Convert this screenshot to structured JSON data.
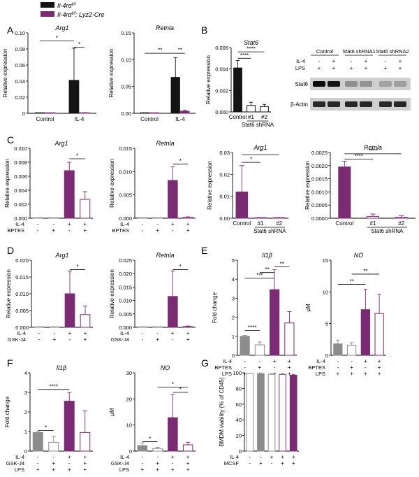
{
  "colors": {
    "black": "#141414",
    "purple": "#7b2a74",
    "gray": "#8c8c8c",
    "axis": "#000000"
  },
  "legend": [
    {
      "label": "Il-4rα",
      "sup": "f/f",
      "suffix": "",
      "style": "black"
    },
    {
      "label": "Il-4rα",
      "sup": "f/f",
      "suffix": "; Lyz2-Cre",
      "style": "purple"
    }
  ],
  "panel_letters": [
    "A",
    "B",
    "C",
    "D",
    "E",
    "F",
    "G"
  ],
  "blot": {
    "headers": [
      "Control",
      "Stat6 shRNA1",
      "Stat6 shRNA2"
    ],
    "rows": [
      {
        "label": "IL-4",
        "values": [
          "-",
          "+",
          "-",
          "+",
          "-",
          "+"
        ]
      },
      {
        "label": "LPS",
        "values": [
          "+",
          "+",
          "+",
          "+",
          "+",
          "+"
        ]
      }
    ],
    "bands": [
      {
        "label": "Stat6",
        "intensity": [
          1.0,
          0.95,
          0.3,
          0.28,
          0.2,
          0.22
        ]
      },
      {
        "label": "β-Actin",
        "intensity": [
          0.85,
          0.85,
          0.85,
          0.85,
          0.85,
          0.85
        ]
      }
    ]
  },
  "chart_data": [
    {
      "id": "A1",
      "type": "bar",
      "title": "Arg1",
      "ylabel": "Relative expression",
      "ylim": [
        0,
        0.1
      ],
      "yticks": [
        "0",
        "0.02",
        "0.04",
        "0.06",
        "0.08",
        "0.10"
      ],
      "values": [
        0.0,
        0.0,
        0.041,
        0.0005
      ],
      "errors": [
        0,
        0,
        0.04,
        0.0003
      ],
      "styles": [
        "black",
        "purple",
        "black",
        "purple"
      ],
      "xlabels": [
        "Control",
        "IL-4"
      ],
      "xlabel_mode": "groups",
      "brackets": [
        {
          "from": 0,
          "to": 2,
          "level": 0.09,
          "label": "*"
        },
        {
          "from": 2,
          "to": 3,
          "level": 0.082,
          "label": "*"
        }
      ]
    },
    {
      "id": "A2",
      "type": "bar",
      "title": "Retnla",
      "ylabel": "Relative expression",
      "ylim": [
        0,
        0.15
      ],
      "yticks": [
        "0.00",
        "0.05",
        "0.10",
        "0.15"
      ],
      "values": [
        0.0,
        0.0,
        0.067,
        0.004
      ],
      "errors": [
        0,
        0,
        0.037,
        0.002
      ],
      "styles": [
        "black",
        "purple",
        "black",
        "purple"
      ],
      "xlabels": [
        "Control",
        "IL-4"
      ],
      "xlabel_mode": "groups",
      "brackets": [
        {
          "from": 0,
          "to": 2,
          "level": 0.112,
          "label": "**"
        },
        {
          "from": 2,
          "to": 3,
          "level": 0.112,
          "label": "**"
        }
      ]
    },
    {
      "id": "B1",
      "type": "bar",
      "title": "Stat6",
      "ylabel": "Relative expression",
      "ylim": [
        0,
        0.006
      ],
      "yticks": [
        "0.000",
        "0.002",
        "0.004",
        "0.006"
      ],
      "values": [
        0.0041,
        0.0006,
        0.0005
      ],
      "errors": [
        0.0007,
        0.0003,
        0.0002
      ],
      "styles": [
        "black",
        "outline-black",
        "outline-black"
      ],
      "xlabels": [
        "Control",
        "#1",
        "#2"
      ],
      "xlabel_mode": "bars",
      "subgroup_label": "Stat6 shRNA",
      "subgroup_range": [
        1,
        2
      ],
      "brackets": [
        {
          "from": 0,
          "to": 1,
          "level": 0.005,
          "label": "****"
        },
        {
          "from": 0,
          "to": 2,
          "level": 0.0056,
          "label": "****"
        }
      ]
    },
    {
      "id": "C1",
      "type": "bar",
      "title": "Arg1",
      "ylabel": "Relative expression",
      "ylim": [
        0,
        0.01
      ],
      "yticks": [
        "0.000",
        "0.002",
        "0.004",
        "0.006",
        "0.008",
        "0.010"
      ],
      "values": [
        0.0,
        0.0,
        0.0068,
        0.0027
      ],
      "errors": [
        0,
        0,
        0.0012,
        0.0011
      ],
      "styles": [
        "gray",
        "outline-gray",
        "purple",
        "outline-purple"
      ],
      "factors": [
        {
          "label": "IL-4",
          "values": [
            "-",
            "-",
            "+",
            "+"
          ]
        },
        {
          "label": "BPTES",
          "values": [
            "-",
            "+",
            "-",
            "+"
          ]
        }
      ],
      "brackets": [
        {
          "from": 2,
          "to": 3,
          "level": 0.0085,
          "label": "*"
        }
      ]
    },
    {
      "id": "C2",
      "type": "bar",
      "title": "Retnla",
      "ylabel": "Relative expression",
      "ylim": [
        0,
        0.015
      ],
      "yticks": [
        "0.000",
        "0.005",
        "0.010",
        "0.015"
      ],
      "values": [
        0.0,
        0.0,
        0.0081,
        0.0002
      ],
      "errors": [
        0,
        0,
        0.0029,
        0.0001
      ],
      "styles": [
        "gray",
        "outline-gray",
        "purple",
        "outline-purple"
      ],
      "factors": [
        {
          "label": "IL-4",
          "values": [
            "-",
            "-",
            "+",
            "+"
          ]
        },
        {
          "label": "BPTES",
          "values": [
            "-",
            "+",
            "-",
            "+"
          ]
        }
      ],
      "brackets": [
        {
          "from": 2,
          "to": 3,
          "level": 0.0116,
          "label": "*"
        }
      ]
    },
    {
      "id": "C3",
      "type": "bar",
      "title": "Arg1",
      "ylabel": "Relative expression",
      "ylim": [
        0,
        0.03
      ],
      "yticks": [
        "0.00",
        "0.01",
        "0.02",
        "0.03"
      ],
      "values": [
        0.012,
        0.0002,
        0.0002
      ],
      "errors": [
        0.012,
        0.0001,
        0.0001
      ],
      "styles": [
        "purple",
        "outline-purple",
        "outline-purple"
      ],
      "xlabels": [
        "Control",
        "#1",
        "#2"
      ],
      "xlabel_mode": "bars",
      "subgroup_label": "Stat6 shRNA",
      "subgroup_range": [
        1,
        2
      ],
      "brackets": [
        {
          "from": 0,
          "to": 1,
          "level": 0.0255,
          "label": "*"
        },
        {
          "from": 0,
          "to": 2,
          "level": 0.029,
          "label": "*"
        }
      ]
    },
    {
      "id": "C4",
      "type": "bar",
      "title": "Retnla",
      "ylabel": "Relative expression",
      "ylim": [
        0,
        0.0025
      ],
      "yticks": [
        "0.0000",
        "0.0005",
        "0.0010",
        "0.0015",
        "0.0020",
        "0.0025"
      ],
      "values": [
        0.00195,
        7e-05,
        4e-05
      ],
      "errors": [
        0.00022,
        9e-05,
        6e-05
      ],
      "styles": [
        "purple",
        "outline-purple",
        "outline-purple"
      ],
      "xlabels": [
        "Control",
        "#1",
        "#2"
      ],
      "xlabel_mode": "bars",
      "subgroup_label": "Stat6 shRNA",
      "subgroup_range": [
        1,
        2
      ],
      "brackets": [
        {
          "from": 0,
          "to": 1,
          "level": 0.00225,
          "label": "****"
        },
        {
          "from": 0,
          "to": 2,
          "level": 0.00245,
          "label": "****"
        }
      ]
    },
    {
      "id": "D1",
      "type": "bar",
      "title": "Arg1",
      "ylabel": "Relative expression",
      "ylim": [
        0,
        0.02
      ],
      "yticks": [
        "0.000",
        "0.005",
        "0.010",
        "0.015",
        "0.020"
      ],
      "values": [
        0.0,
        0.0,
        0.01,
        0.0038
      ],
      "errors": [
        0,
        0,
        0.0068,
        0.0026
      ],
      "styles": [
        "gray",
        "outline-gray",
        "purple",
        "outline-purple"
      ],
      "factors": [
        {
          "label": "IL-4",
          "values": [
            "-",
            "-",
            "+",
            "+"
          ]
        },
        {
          "label": "GSK-J4",
          "values": [
            "-",
            "+",
            "-",
            "+"
          ]
        }
      ],
      "brackets": [
        {
          "from": 2,
          "to": 3,
          "level": 0.0172,
          "label": "*"
        }
      ]
    },
    {
      "id": "D2",
      "type": "bar",
      "title": "Retnla",
      "ylabel": "Relative expression",
      "ylim": [
        0,
        0.025
      ],
      "yticks": [
        "0.000",
        "0.005",
        "0.010",
        "0.015",
        "0.020",
        "0.025"
      ],
      "values": [
        0.0,
        0.0,
        0.0115,
        0.0003
      ],
      "errors": [
        0,
        0,
        0.0095,
        0.0002
      ],
      "styles": [
        "gray",
        "outline-gray",
        "purple",
        "outline-purple"
      ],
      "factors": [
        {
          "label": "IL-4",
          "values": [
            "-",
            "-",
            "+",
            "+"
          ]
        },
        {
          "label": "GSK-J4",
          "values": [
            "-",
            "+",
            "-",
            "+"
          ]
        }
      ],
      "brackets": [
        {
          "from": 2,
          "to": 3,
          "level": 0.0215,
          "label": "*"
        }
      ]
    },
    {
      "id": "E1",
      "type": "bar",
      "title": "Il1β",
      "ylabel": "Fold change",
      "ylim": [
        0,
        5
      ],
      "yticks": [
        "0",
        "1",
        "2",
        "3",
        "4",
        "5"
      ],
      "values": [
        1.0,
        0.55,
        3.45,
        1.7
      ],
      "errors": [
        0.05,
        0.15,
        1.05,
        0.6
      ],
      "styles": [
        "gray",
        "outline-gray",
        "purple",
        "outline-purple"
      ],
      "factors": [
        {
          "label": "IL-4",
          "values": [
            "-",
            "-",
            "+",
            "+"
          ]
        },
        {
          "label": "BPTES",
          "values": [
            "-",
            "+",
            "-",
            "+"
          ]
        },
        {
          "label": "LPS",
          "values": [
            "+",
            "+",
            "+",
            "+"
          ]
        }
      ],
      "brackets": [
        {
          "from": 0,
          "to": 1,
          "level": 1.3,
          "label": "****"
        },
        {
          "from": 0,
          "to": 2,
          "level": 4.05,
          "label": "***"
        },
        {
          "from": 1,
          "to": 2,
          "level": 4.35,
          "label": "**"
        },
        {
          "from": 2,
          "to": 3,
          "level": 4.65,
          "label": "**"
        }
      ]
    },
    {
      "id": "E2",
      "type": "bar",
      "title": "NO",
      "ylabel": "μM",
      "ylim": [
        0,
        15
      ],
      "yticks": [
        "0",
        "5",
        "10",
        "15"
      ],
      "values": [
        1.8,
        1.6,
        7.2,
        6.6
      ],
      "errors": [
        0.6,
        0.4,
        3.2,
        3.0
      ],
      "styles": [
        "gray",
        "outline-gray",
        "purple",
        "outline-purple"
      ],
      "factors": [
        {
          "label": "IL-4",
          "values": [
            "-",
            "-",
            "+",
            "+"
          ]
        },
        {
          "label": "BPTES",
          "values": [
            "-",
            "+",
            "-",
            "+"
          ]
        },
        {
          "label": "LPS",
          "values": [
            "+",
            "+",
            "+",
            "+"
          ]
        }
      ],
      "brackets": [
        {
          "from": 0,
          "to": 2,
          "level": 11.2,
          "label": "**"
        },
        {
          "from": 1,
          "to": 3,
          "level": 12.8,
          "label": "**"
        }
      ]
    },
    {
      "id": "F1",
      "type": "bar",
      "title": "Il1β",
      "ylabel": "Fold change",
      "ylim": [
        0,
        4
      ],
      "yticks": [
        "0",
        "1",
        "2",
        "3",
        "4"
      ],
      "values": [
        0.95,
        0.45,
        2.55,
        0.95
      ],
      "errors": [
        0.05,
        0.3,
        0.45,
        1.1
      ],
      "styles": [
        "gray",
        "outline-gray",
        "purple",
        "outline-purple"
      ],
      "factors": [
        {
          "label": "IL-4",
          "values": [
            "-",
            "-",
            "+",
            "+"
          ]
        },
        {
          "label": "GSK-J4",
          "values": [
            "-",
            "+",
            "-",
            "+"
          ]
        },
        {
          "label": "LPS",
          "values": [
            "+",
            "+",
            "+",
            "+"
          ]
        }
      ],
      "brackets": [
        {
          "from": 0,
          "to": 1,
          "level": 1.05,
          "label": "*"
        },
        {
          "from": 0,
          "to": 2,
          "level": 3.15,
          "label": "****"
        }
      ]
    },
    {
      "id": "F2",
      "type": "bar",
      "title": "NO",
      "ylabel": "μM",
      "ylim": [
        0,
        30
      ],
      "yticks": [
        "0",
        "10",
        "20",
        "30"
      ],
      "values": [
        2.1,
        1.0,
        12.8,
        2.4
      ],
      "errors": [
        1.1,
        0.5,
        8.8,
        1.0
      ],
      "styles": [
        "gray",
        "outline-gray",
        "purple",
        "outline-purple"
      ],
      "factors": [
        {
          "label": "IL-4",
          "values": [
            "-",
            "-",
            "+",
            "+"
          ]
        },
        {
          "label": "GSK-J4",
          "values": [
            "-",
            "+",
            "-",
            "+"
          ]
        },
        {
          "label": "LPS",
          "values": [
            "+",
            "+",
            "+",
            "+"
          ]
        }
      ],
      "brackets": [
        {
          "from": 0,
          "to": 1,
          "level": 3.6,
          "label": "*"
        },
        {
          "from": 1,
          "to": 3,
          "level": 24.5,
          "label": "*"
        },
        {
          "from": 2,
          "to": 3,
          "level": 22.5,
          "label": "*"
        }
      ]
    },
    {
      "id": "G1",
      "type": "bar",
      "title": "",
      "ylabel": "BMDM viability (% of CD45)",
      "ylim": [
        0,
        100
      ],
      "yticks": [
        "0",
        "20",
        "40",
        "60",
        "80",
        "100"
      ],
      "values": [
        99,
        99,
        98,
        98,
        97
      ],
      "errors": [
        0.3,
        0.3,
        0.8,
        0.8,
        1.0
      ],
      "styles": [
        "outline-gray",
        "gray",
        "outline-gray",
        "outline-purple",
        "purple"
      ],
      "factors": [
        {
          "label": "IL-4",
          "values": [
            "-",
            "-",
            "+",
            "+",
            "+"
          ]
        },
        {
          "label": "MCSF",
          "values": [
            "-",
            "+",
            "-",
            "+",
            "+"
          ]
        }
      ],
      "brackets": []
    }
  ]
}
